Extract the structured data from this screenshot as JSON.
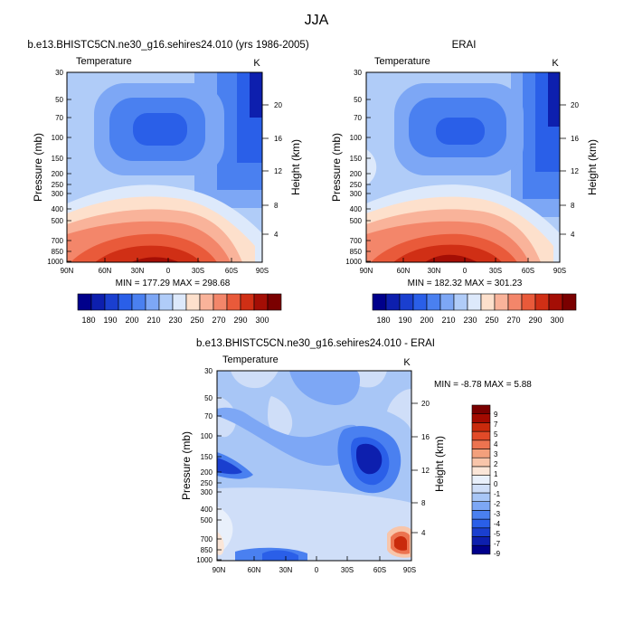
{
  "figure": {
    "title": "JJA"
  },
  "colors": {
    "temperature_scale": [
      "#00008b",
      "#0d1fae",
      "#1a3fcf",
      "#2a5fe8",
      "#4a80f0",
      "#7da7f5",
      "#b0ccf8",
      "#dde9fb",
      "#fde0cc",
      "#f9b39a",
      "#f3866a",
      "#e95a3a",
      "#d02f15",
      "#a40e05",
      "#7a0000"
    ],
    "difference_scale": [
      "#00008b",
      "#0d1fae",
      "#1a3fcf",
      "#2a5fe8",
      "#4a80f0",
      "#7da7f5",
      "#a8c6f6",
      "#cfdef8",
      "#e9f0fb",
      "#fbe6d8",
      "#f8c5aa",
      "#f3a07c",
      "#ec7350",
      "#e24a28",
      "#c92a0c",
      "#a30a00",
      "#7a0000"
    ]
  },
  "chart_data": [
    {
      "type": "heatmap",
      "title": "b.e13.BHISTC5CN.ne30_g16.sehires24.010 (yrs 1986-2005)",
      "left_label": "Temperature",
      "right_label": "K",
      "xlabel": "",
      "ylabel": "Pressure (mb)",
      "y2label": "Height (km)",
      "x_ticks": [
        "90N",
        "60N",
        "30N",
        "0",
        "30S",
        "60S",
        "90S"
      ],
      "y_ticks": [
        "30",
        "50",
        "70",
        "100",
        "150",
        "200",
        "250",
        "300",
        "400",
        "500",
        "700",
        "850",
        "1000"
      ],
      "y2_ticks": [
        "4",
        "8",
        "12",
        "16",
        "20"
      ],
      "y_scale": "log",
      "min_max_text": "MIN = 177.29  MAX = 298.68",
      "min": 177.29,
      "max": 298.68,
      "colorbar_labels": [
        "180",
        "190",
        "200",
        "210",
        "230",
        "250",
        "270",
        "290",
        "300"
      ],
      "legend_placement": "bottom"
    },
    {
      "type": "heatmap",
      "title": "ERAI",
      "left_label": "Temperature",
      "right_label": "K",
      "xlabel": "",
      "ylabel": "Pressure (mb)",
      "y2label": "Height (km)",
      "x_ticks": [
        "90N",
        "60N",
        "30N",
        "0",
        "30S",
        "60S",
        "90S"
      ],
      "y_ticks": [
        "30",
        "50",
        "70",
        "100",
        "150",
        "200",
        "250",
        "300",
        "400",
        "500",
        "700",
        "850",
        "1000"
      ],
      "y2_ticks": [
        "4",
        "8",
        "12",
        "16",
        "20"
      ],
      "y_scale": "log",
      "min_max_text": "MIN = 182.32  MAX = 301.23",
      "min": 182.32,
      "max": 301.23,
      "colorbar_labels": [
        "180",
        "190",
        "200",
        "210",
        "230",
        "250",
        "270",
        "290",
        "300"
      ],
      "legend_placement": "bottom"
    },
    {
      "type": "heatmap",
      "title": "b.e13.BHISTC5CN.ne30_g16.sehires24.010 - ERAI",
      "left_label": "Temperature",
      "right_label": "K",
      "xlabel": "",
      "ylabel": "Pressure (mb)",
      "y2label": "Height (km)",
      "x_ticks": [
        "90N",
        "60N",
        "30N",
        "0",
        "30S",
        "60S",
        "90S"
      ],
      "y_ticks": [
        "30",
        "50",
        "70",
        "100",
        "150",
        "200",
        "250",
        "300",
        "400",
        "500",
        "700",
        "850",
        "1000"
      ],
      "y2_ticks": [
        "4",
        "8",
        "12",
        "16",
        "20"
      ],
      "y_scale": "log",
      "min_max_text": "MIN = -8.78  MAX =  5.88",
      "min": -8.78,
      "max": 5.88,
      "colorbar_labels": [
        "9",
        "7",
        "5",
        "4",
        "3",
        "2",
        "1",
        "0",
        "-1",
        "-2",
        "-3",
        "-4",
        "-5",
        "-7",
        "-9"
      ],
      "legend_placement": "right"
    }
  ]
}
